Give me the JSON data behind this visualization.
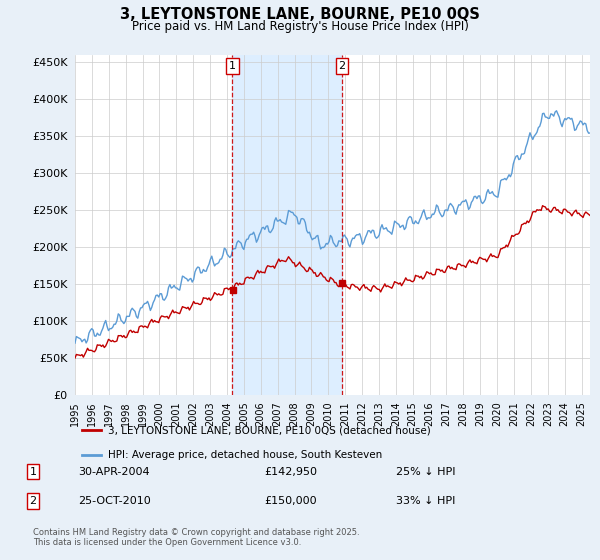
{
  "title": "3, LEYTONSTONE LANE, BOURNE, PE10 0QS",
  "subtitle": "Price paid vs. HM Land Registry's House Price Index (HPI)",
  "ylim": [
    0,
    460000
  ],
  "yticks": [
    0,
    50000,
    100000,
    150000,
    200000,
    250000,
    300000,
    350000,
    400000,
    450000
  ],
  "hpi_color": "#5b9bd5",
  "price_color": "#c00000",
  "vline_color": "#cc0000",
  "legend_price_label": "3, LEYTONSTONE LANE, BOURNE, PE10 0QS (detached house)",
  "legend_hpi_label": "HPI: Average price, detached house, South Kesteven",
  "footnote": "Contains HM Land Registry data © Crown copyright and database right 2025.\nThis data is licensed under the Open Government Licence v3.0.",
  "background_color": "#e8f0f8",
  "plot_bg_color": "#ffffff",
  "grid_color": "#cccccc",
  "shade_color": "#ddeeff",
  "t1_year": 2004.327,
  "t2_year": 2010.811,
  "t1_label": "1",
  "t2_label": "2",
  "t1_price": 142950,
  "t2_price": 150000,
  "xmin": 1995,
  "xmax": 2025.5
}
